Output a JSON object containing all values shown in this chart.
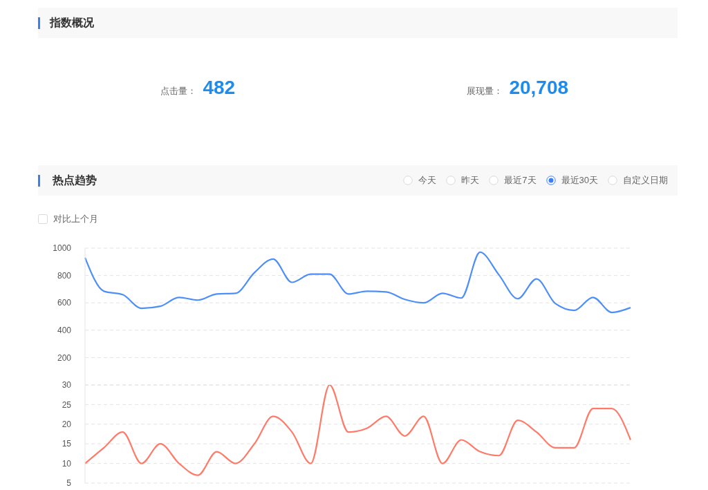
{
  "chart_data": [
    {
      "type": "other",
      "title": "指数概况",
      "annotations": [
        "点击量：",
        "482",
        "展现量：",
        "20,708"
      ]
    },
    {
      "type": "line",
      "title": "热点趋势",
      "annotations": [
        "今天",
        "昨天",
        "最近7天",
        "最近30天",
        "自定义日期",
        "对比上个月"
      ],
      "categories": [
        null,
        null,
        null,
        null,
        null,
        null,
        null,
        null,
        null,
        null,
        null,
        null,
        null,
        null,
        null,
        null,
        null,
        null,
        null,
        null,
        null,
        null,
        null,
        null,
        null,
        null,
        null,
        null,
        null,
        null
      ],
      "values": [
        930,
        685,
        660,
        560,
        575,
        640,
        620,
        665,
        670,
        820,
        920,
        750,
        810,
        810,
        665,
        685,
        680,
        625,
        600,
        670,
        635,
        970,
        805,
        630,
        775,
        595,
        545,
        640,
        530,
        565
      ],
      "color": "#4d8ff8",
      "ylim": [
        0,
        1000
      ],
      "yticks": [
        200,
        400,
        600,
        800,
        1000
      ],
      "grid": "y",
      "tick_labels": "y"
    },
    {
      "type": "line",
      "categories": [
        null,
        null,
        null,
        null,
        null,
        null,
        null,
        null,
        null,
        null,
        null,
        null,
        null,
        null,
        null,
        null,
        null,
        null,
        null,
        null,
        null,
        null,
        null,
        null,
        null,
        null,
        null,
        null,
        null,
        null
      ],
      "values": [
        10,
        14,
        18,
        10,
        15,
        10,
        7,
        13,
        10,
        15,
        22,
        18,
        10,
        30,
        18,
        19,
        22,
        17,
        22,
        10,
        16,
        13,
        12,
        21,
        18,
        14,
        14,
        24,
        24,
        16
      ],
      "color": "#fe7b69",
      "ylim": [
        5,
        30
      ],
      "yticks": [
        5,
        10,
        15,
        20,
        25,
        30
      ],
      "grid": "y",
      "tick_labels": "y"
    }
  ]
}
